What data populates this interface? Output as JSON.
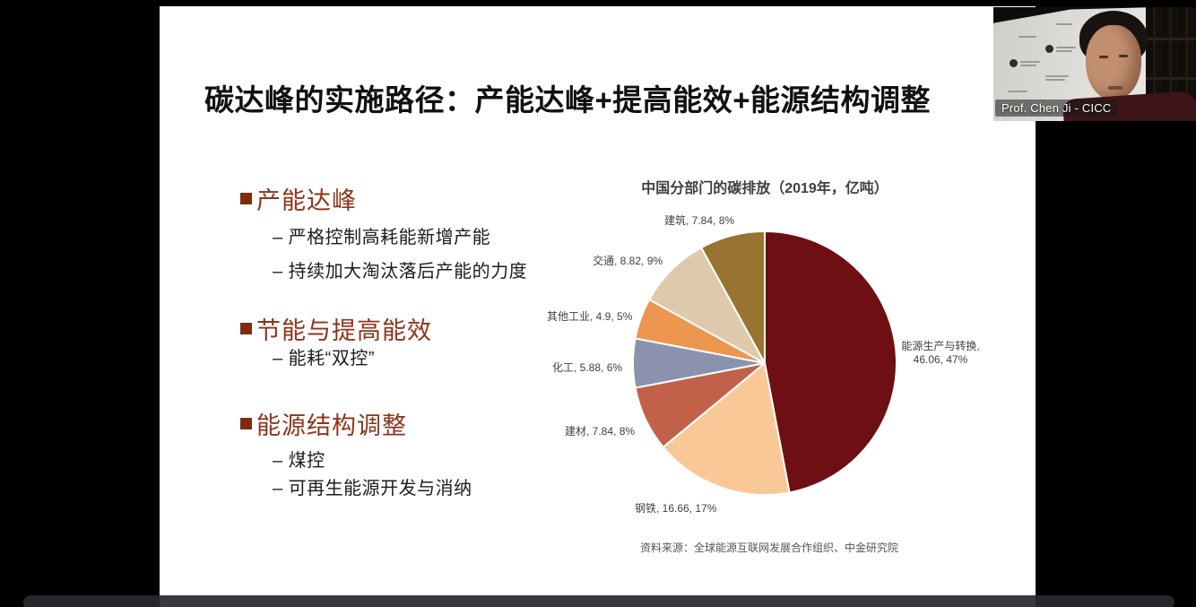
{
  "slide": {
    "title": "碳达峰的实施路径：产能达峰+提高能效+能源结构调整",
    "bullets": [
      {
        "heading": "产能达峰",
        "items": [
          "– 严格控制高耗能新增产能",
          "– 持续加大淘汰落后产能的力度"
        ]
      },
      {
        "heading": "节能与提高能效",
        "items": [
          "– 能耗“双控”"
        ]
      },
      {
        "heading": "能源结构调整",
        "items": [
          "– 煤控",
          "– 可再生能源开发与消纳"
        ]
      }
    ],
    "source": "资料来源：全球能源互联网发展合作组织、中金研究院",
    "accent_color": "#8E341A"
  },
  "chart_data": {
    "type": "pie",
    "title": "中国分部门的碳排放（2019年，亿吨）",
    "unit": "亿吨",
    "direction": "clockwise",
    "start_angle_deg": 0,
    "slices": [
      {
        "label": "能源生产与转换",
        "value": 46.06,
        "pct": "47%",
        "color": "#6E1013",
        "display": "能源生产与转换,\n46.06, 47%"
      },
      {
        "label": "钢铁",
        "value": 16.66,
        "pct": "17%",
        "color": "#F8C997",
        "display": "钢铁, 16.66, 17%"
      },
      {
        "label": "建材",
        "value": 7.84,
        "pct": "8%",
        "color": "#C26149",
        "display": "建材, 7.84, 8%"
      },
      {
        "label": "化工",
        "value": 5.88,
        "pct": "6%",
        "color": "#8B92AE",
        "display": "化工, 5.88, 6%"
      },
      {
        "label": "其他工业",
        "value": 4.9,
        "pct": "5%",
        "color": "#EC9650",
        "display": "其他工业, 4.9, 5%"
      },
      {
        "label": "交通",
        "value": 8.82,
        "pct": "9%",
        "color": "#DECAAB",
        "display": "交通, 8.82, 9%"
      },
      {
        "label": "建筑",
        "value": 7.84,
        "pct": "8%",
        "color": "#97742F",
        "display": "建筑, 7.84, 8%"
      }
    ]
  },
  "webcam": {
    "name_label": "Prof. Chen Ji - CICC"
  }
}
